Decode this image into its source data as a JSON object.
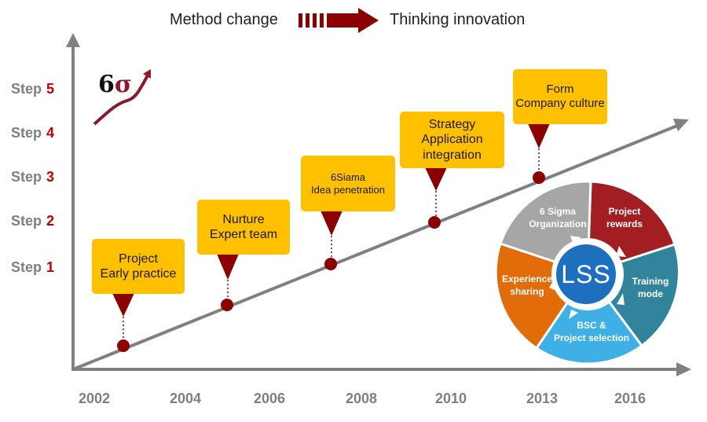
{
  "legend": {
    "left_text": "Method change",
    "right_text": "Thinking innovation"
  },
  "logo": {
    "six": "6",
    "sigma": "σ"
  },
  "steps": [
    {
      "word": "Step",
      "num": "5"
    },
    {
      "word": "Step",
      "num": "4"
    },
    {
      "word": "Step",
      "num": "3"
    },
    {
      "word": "Step",
      "num": "2"
    },
    {
      "word": "Step",
      "num": "1"
    }
  ],
  "years": [
    "2002",
    "2004",
    "2006",
    "2008",
    "2010",
    "2013",
    "2016"
  ],
  "milestones": [
    {
      "text": "Project\nEarly practice"
    },
    {
      "text": "Nurture\nExpert team"
    },
    {
      "text": "6Siama\nIdea penetration"
    },
    {
      "text": "Strategy\nApplication\nintegration"
    },
    {
      "text": "Form\nCompany culture"
    }
  ],
  "cycle": {
    "center": "LSS",
    "segments": [
      {
        "label": "Project\nrewards",
        "color": "#a31e22"
      },
      {
        "label": "Training\nmode",
        "color": "#31849b"
      },
      {
        "label": "BSC &\nProject selection",
        "color": "#3eb0e6"
      },
      {
        "label": "Experience\nsharing",
        "color": "#e26b0a"
      },
      {
        "label": "6 Sigma\nOrganization",
        "color": "#a6a6a6"
      }
    ],
    "center_color": "#1f6fbf"
  },
  "colors": {
    "axis": "#808080",
    "callout": "#ffc000",
    "marker": "#8b0000",
    "step_number": "#c00000"
  }
}
